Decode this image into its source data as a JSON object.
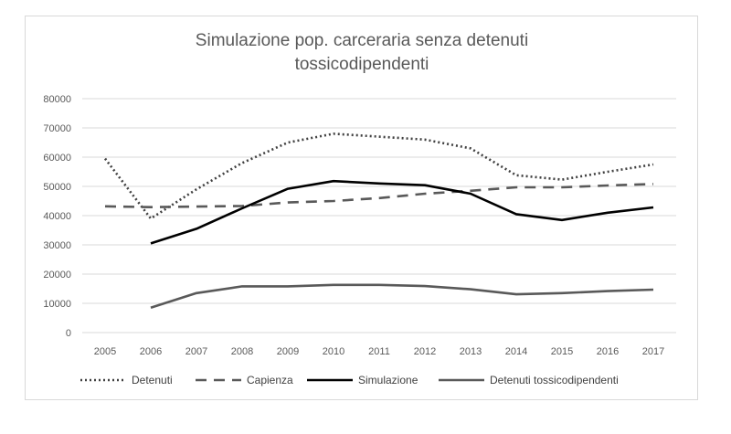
{
  "chart_data": {
    "type": "line",
    "title": [
      "Simulazione pop. carceraria senza detenuti",
      "tossicodipendenti"
    ],
    "xlabel": "",
    "ylabel": "",
    "x": [
      "2005",
      "2006",
      "2007",
      "2008",
      "2009",
      "2010",
      "2011",
      "2012",
      "2013",
      "2014",
      "2015",
      "2016",
      "2017"
    ],
    "ylim": [
      0,
      80000
    ],
    "yticks": [
      0,
      10000,
      20000,
      30000,
      40000,
      50000,
      60000,
      70000,
      80000
    ],
    "grid": true,
    "legend_position": "bottom",
    "series": [
      {
        "name": "Detenuti",
        "style": "dotted",
        "color": "#404040",
        "values": [
          59500,
          39000,
          49000,
          58000,
          65000,
          68000,
          67000,
          66000,
          63000,
          53800,
          52300,
          55000,
          57500
        ]
      },
      {
        "name": "Capienza",
        "style": "dashed",
        "color": "#595959",
        "values": [
          43200,
          42900,
          43100,
          43300,
          44500,
          45000,
          46000,
          47500,
          48500,
          49700,
          49700,
          50300,
          50800
        ]
      },
      {
        "name": "Simulazione",
        "style": "solid",
        "color": "#000000",
        "values": [
          null,
          30500,
          35500,
          42500,
          49200,
          51800,
          51000,
          50400,
          47500,
          40500,
          38500,
          41000,
          42800
        ]
      },
      {
        "name": "Detenuti tossicodipendenti",
        "style": "solid",
        "color": "#595959",
        "values": [
          null,
          8500,
          13500,
          15800,
          15800,
          16300,
          16300,
          15900,
          14800,
          13100,
          13500,
          14200,
          14700
        ]
      }
    ]
  }
}
